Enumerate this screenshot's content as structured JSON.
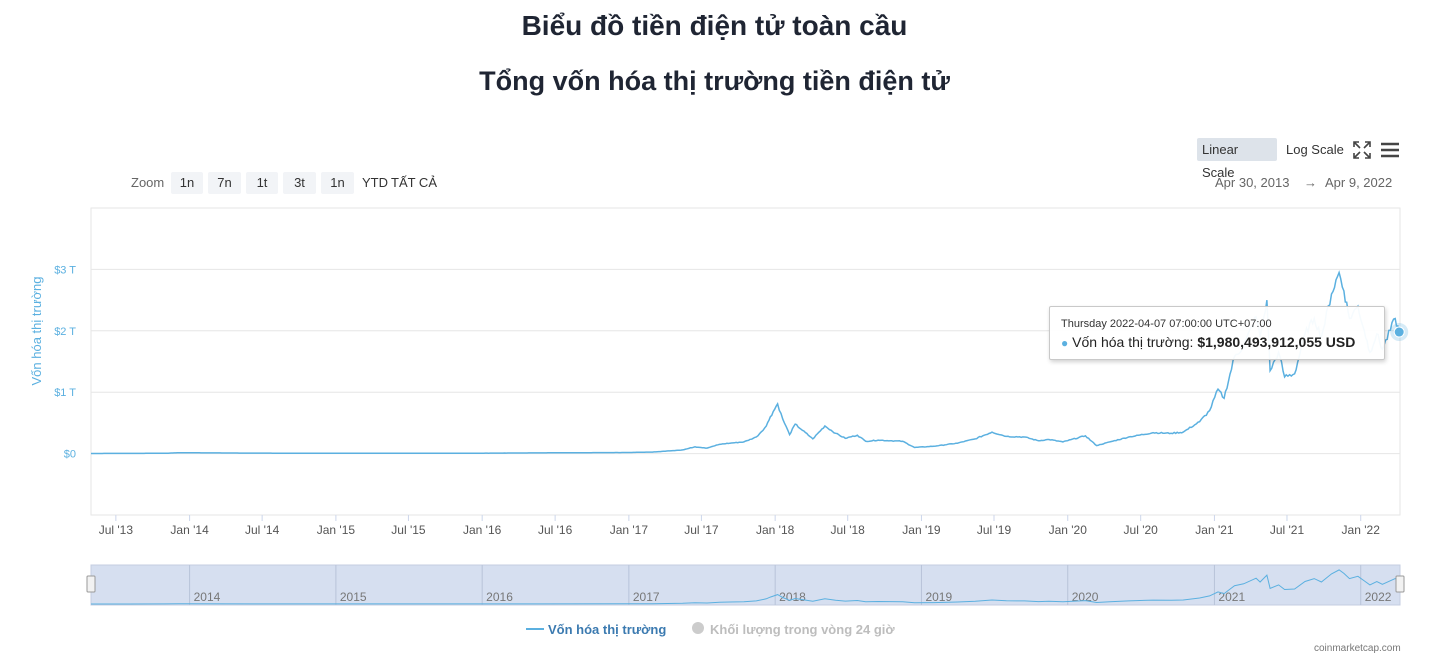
{
  "header": {
    "title": "Biểu đồ tiền điện tử toàn cầu",
    "subtitle": "Tổng vốn hóa thị trường tiền điện tử"
  },
  "toolbar": {
    "linear_label": "Linear Scale",
    "log_label": "Log Scale",
    "fullscreen_icon": "fullscreen-icon",
    "menu_icon": "hamburger-menu-icon"
  },
  "zoom": {
    "label": "Zoom",
    "buttons": [
      "1n",
      "7n",
      "1t",
      "3t",
      "1n",
      "YTD",
      "TẤT CẢ"
    ]
  },
  "range": {
    "from": "Apr 30, 2013",
    "arrow": "→",
    "to": "Apr 9, 2022"
  },
  "tooltip": {
    "date": "Thursday 2022-04-07 07:00:00 UTC+07:00",
    "series_label": "Vốn hóa thị trường:",
    "value": "$1,980,493,912,055 USD"
  },
  "legend": {
    "market_cap": "Vốn hóa thị trường",
    "volume": "Khối lượng trong vòng 24 giờ"
  },
  "credit": "coinmarketcap.com",
  "colors": {
    "line": "#5bb0e0",
    "axis_text": "#5bb0e0",
    "grid": "#e6e6e6",
    "navigator_bg": "#d6dff0",
    "legend_inactive": "#bdbdbd"
  },
  "chart_data": {
    "type": "line",
    "title": "Tổng vốn hóa thị trường tiền điện tử",
    "ylabel": "Vốn hóa thị trường",
    "yunit": "USD trillions",
    "ylim": [
      -1,
      4
    ],
    "yticks": [
      0,
      1,
      2,
      3
    ],
    "ytick_labels": [
      "$0",
      "$1 T",
      "$2 T",
      "$3 T"
    ],
    "xlim": [
      "2013-04-30",
      "2022-04-09"
    ],
    "xticks": [
      "2013-07-01",
      "2014-01-01",
      "2014-07-01",
      "2015-01-01",
      "2015-07-01",
      "2016-01-01",
      "2016-07-01",
      "2017-01-01",
      "2017-07-01",
      "2018-01-01",
      "2018-07-01",
      "2019-01-01",
      "2019-07-01",
      "2020-01-01",
      "2020-07-01",
      "2021-01-01",
      "2021-07-01",
      "2022-01-01"
    ],
    "xtick_labels": [
      "Jul '13",
      "Jan '14",
      "Jul '14",
      "Jan '15",
      "Jul '15",
      "Jan '16",
      "Jul '16",
      "Jan '17",
      "Jul '17",
      "Jan '18",
      "Jul '18",
      "Jan '19",
      "Jul '19",
      "Jan '20",
      "Jul '20",
      "Jan '21",
      "Jul '21",
      "Jan '22"
    ],
    "navigator_labels": [
      "2014",
      "2015",
      "2016",
      "2017",
      "2018",
      "2019",
      "2020",
      "2021",
      "2022"
    ],
    "grid": true,
    "legend_position": "bottom",
    "series": [
      {
        "name": "Vốn hóa thị trường",
        "points": [
          [
            "2013-04-30",
            0.002
          ],
          [
            "2013-11-01",
            0.005
          ],
          [
            "2013-12-05",
            0.014
          ],
          [
            "2014-06-01",
            0.008
          ],
          [
            "2015-01-01",
            0.005
          ],
          [
            "2016-01-01",
            0.007
          ],
          [
            "2016-06-01",
            0.012
          ],
          [
            "2016-12-31",
            0.018
          ],
          [
            "2017-03-01",
            0.025
          ],
          [
            "2017-05-15",
            0.06
          ],
          [
            "2017-06-15",
            0.11
          ],
          [
            "2017-07-15",
            0.09
          ],
          [
            "2017-08-15",
            0.15
          ],
          [
            "2017-09-10",
            0.17
          ],
          [
            "2017-10-15",
            0.19
          ],
          [
            "2017-11-15",
            0.27
          ],
          [
            "2017-12-10",
            0.45
          ],
          [
            "2017-12-20",
            0.6
          ],
          [
            "2018-01-07",
            0.81
          ],
          [
            "2018-01-20",
            0.56
          ],
          [
            "2018-02-06",
            0.31
          ],
          [
            "2018-02-20",
            0.48
          ],
          [
            "2018-03-10",
            0.38
          ],
          [
            "2018-04-05",
            0.24
          ],
          [
            "2018-05-05",
            0.45
          ],
          [
            "2018-06-01",
            0.33
          ],
          [
            "2018-06-25",
            0.25
          ],
          [
            "2018-07-25",
            0.3
          ],
          [
            "2018-08-15",
            0.2
          ],
          [
            "2018-09-15",
            0.22
          ],
          [
            "2018-10-15",
            0.21
          ],
          [
            "2018-11-15",
            0.2
          ],
          [
            "2018-12-15",
            0.1
          ],
          [
            "2019-02-01",
            0.12
          ],
          [
            "2019-04-01",
            0.17
          ],
          [
            "2019-05-15",
            0.24
          ],
          [
            "2019-06-26",
            0.35
          ],
          [
            "2019-08-01",
            0.28
          ],
          [
            "2019-09-15",
            0.27
          ],
          [
            "2019-10-20",
            0.21
          ],
          [
            "2019-11-15",
            0.23
          ],
          [
            "2019-12-20",
            0.19
          ],
          [
            "2020-02-14",
            0.29
          ],
          [
            "2020-03-13",
            0.13
          ],
          [
            "2020-04-15",
            0.19
          ],
          [
            "2020-06-01",
            0.27
          ],
          [
            "2020-08-01",
            0.34
          ],
          [
            "2020-09-15",
            0.33
          ],
          [
            "2020-10-15",
            0.35
          ],
          [
            "2020-11-25",
            0.52
          ],
          [
            "2020-12-20",
            0.7
          ],
          [
            "2021-01-10",
            1.05
          ],
          [
            "2021-01-25",
            0.9
          ],
          [
            "2021-02-20",
            1.58
          ],
          [
            "2021-03-15",
            1.75
          ],
          [
            "2021-04-15",
            2.23
          ],
          [
            "2021-04-25",
            1.9
          ],
          [
            "2021-05-12",
            2.5
          ],
          [
            "2021-05-20",
            1.35
          ],
          [
            "2021-06-10",
            1.65
          ],
          [
            "2021-06-25",
            1.25
          ],
          [
            "2021-07-20",
            1.3
          ],
          [
            "2021-08-15",
            1.95
          ],
          [
            "2021-09-07",
            2.2
          ],
          [
            "2021-09-25",
            1.9
          ],
          [
            "2021-10-20",
            2.6
          ],
          [
            "2021-11-08",
            2.95
          ],
          [
            "2021-11-20",
            2.65
          ],
          [
            "2021-12-04",
            2.2
          ],
          [
            "2021-12-25",
            2.4
          ],
          [
            "2022-01-10",
            2.0
          ],
          [
            "2022-01-24",
            1.65
          ],
          [
            "2022-02-10",
            1.95
          ],
          [
            "2022-02-24",
            1.7
          ],
          [
            "2022-03-28",
            2.2
          ],
          [
            "2022-04-07",
            1.98
          ],
          [
            "2022-04-09",
            1.97
          ]
        ]
      }
    ],
    "highlight": {
      "date": "2022-04-07",
      "value": 1.98
    }
  }
}
